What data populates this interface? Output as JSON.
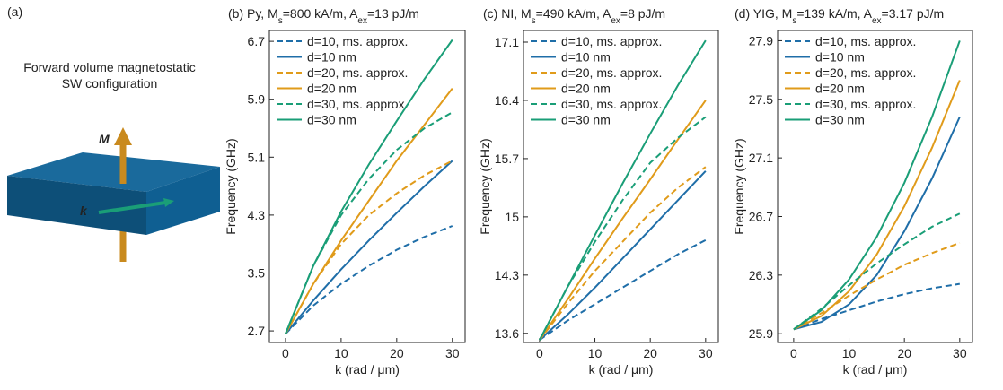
{
  "panel_a": {
    "label": "(a)",
    "title_lines": [
      "Forward volume magnetostatic",
      "SW configuration"
    ],
    "m_label": "M",
    "k_label": "k"
  },
  "chart_data": [
    {
      "type": "line",
      "title_parts": [
        "(b) Py, M",
        "s",
        "=800 kA/m, A",
        "ex",
        "=13 pJ/m"
      ],
      "x_label": "k (rad / μm)",
      "y_label": "Frequency (GHz)",
      "x": [
        0,
        5,
        10,
        15,
        20,
        25,
        30
      ],
      "xlim": [
        -2.9,
        32.3
      ],
      "xticks": [
        0,
        10,
        20,
        30
      ],
      "ylim": [
        2.54,
        6.85
      ],
      "yticks": [
        2.7,
        3.5,
        4.3,
        5.1,
        5.9,
        6.7
      ],
      "series": [
        {
          "name": "d=10, ms. approx.",
          "color": "#1f6ea8",
          "dash": true,
          "values": [
            2.66,
            3.05,
            3.35,
            3.6,
            3.82,
            4.0,
            4.15
          ]
        },
        {
          "name": "d=10 nm",
          "color": "#1f6ea8",
          "dash": false,
          "values": [
            2.66,
            3.12,
            3.55,
            3.95,
            4.33,
            4.7,
            5.05
          ]
        },
        {
          "name": "d=20, ms. approx.",
          "color": "#e09b1a",
          "dash": true,
          "values": [
            2.66,
            3.35,
            3.9,
            4.3,
            4.6,
            4.85,
            5.05
          ]
        },
        {
          "name": "d=20 nm",
          "color": "#e09b1a",
          "dash": false,
          "values": [
            2.66,
            3.35,
            3.95,
            4.5,
            5.05,
            5.55,
            6.05
          ]
        },
        {
          "name": "d=30, ms. approx.",
          "color": "#1a9e77",
          "dash": true,
          "values": [
            2.66,
            3.6,
            4.3,
            4.8,
            5.2,
            5.5,
            5.72
          ]
        },
        {
          "name": "d=30 nm",
          "color": "#1a9e77",
          "dash": false,
          "values": [
            2.66,
            3.6,
            4.35,
            5.0,
            5.6,
            6.18,
            6.72
          ]
        }
      ]
    },
    {
      "type": "line",
      "title_parts": [
        "(c) NI, M",
        "s",
        "=490 kA/m, A",
        "ex",
        "=8 pJ/m"
      ],
      "x_label": "k (rad / μm)",
      "y_label": "Frequency (GHz)",
      "x": [
        0,
        5,
        10,
        15,
        20,
        25,
        30
      ],
      "xlim": [
        -2.9,
        32.3
      ],
      "xticks": [
        0,
        10,
        20,
        30
      ],
      "ylim": [
        13.49,
        17.24
      ],
      "yticks": [
        13.6,
        14.3,
        15.0,
        15.7,
        16.4,
        17.1
      ],
      "series": [
        {
          "name": "d=10, ms. approx.",
          "color": "#1f6ea8",
          "dash": true,
          "values": [
            13.52,
            13.75,
            13.95,
            14.15,
            14.35,
            14.55,
            14.72
          ]
        },
        {
          "name": "d=10 nm",
          "color": "#1f6ea8",
          "dash": false,
          "values": [
            13.52,
            13.82,
            14.15,
            14.5,
            14.85,
            15.2,
            15.55
          ]
        },
        {
          "name": "d=20, ms. approx.",
          "color": "#e09b1a",
          "dash": true,
          "values": [
            13.52,
            13.95,
            14.35,
            14.7,
            15.05,
            15.35,
            15.6
          ]
        },
        {
          "name": "d=20 nm",
          "color": "#e09b1a",
          "dash": false,
          "values": [
            13.52,
            14.0,
            14.5,
            14.98,
            15.45,
            15.93,
            16.4
          ]
        },
        {
          "name": "d=30, ms. approx.",
          "color": "#1a9e77",
          "dash": true,
          "values": [
            13.52,
            14.15,
            14.7,
            15.2,
            15.65,
            15.95,
            16.2
          ]
        },
        {
          "name": "d=30 nm",
          "color": "#1a9e77",
          "dash": false,
          "values": [
            13.52,
            14.15,
            14.78,
            15.4,
            16.0,
            16.58,
            17.12
          ]
        }
      ]
    },
    {
      "type": "line",
      "title_parts": [
        "(d) YIG, M",
        "s",
        "=139 kA/m, A",
        "ex",
        "=3.17 pJ/m"
      ],
      "x_label": "k (rad / μm)",
      "y_label": "Frequency (GHz)",
      "x": [
        0,
        5,
        10,
        15,
        20,
        25,
        30
      ],
      "xlim": [
        -2.9,
        32.3
      ],
      "xticks": [
        0,
        10,
        20,
        30
      ],
      "ylim": [
        25.84,
        27.97
      ],
      "yticks": [
        25.9,
        26.3,
        26.7,
        27.1,
        27.5,
        27.9
      ],
      "series": [
        {
          "name": "d=10, ms. approx.",
          "color": "#1f6ea8",
          "dash": true,
          "values": [
            25.93,
            26.0,
            26.06,
            26.12,
            26.17,
            26.21,
            26.24
          ]
        },
        {
          "name": "d=10 nm",
          "color": "#1f6ea8",
          "dash": false,
          "values": [
            25.93,
            25.98,
            26.1,
            26.3,
            26.6,
            26.96,
            27.38
          ]
        },
        {
          "name": "d=20, ms. approx.",
          "color": "#e09b1a",
          "dash": true,
          "values": [
            25.93,
            26.04,
            26.16,
            26.27,
            26.37,
            26.45,
            26.52
          ]
        },
        {
          "name": "d=20 nm",
          "color": "#e09b1a",
          "dash": false,
          "values": [
            25.93,
            26.02,
            26.19,
            26.44,
            26.77,
            27.17,
            27.63
          ]
        },
        {
          "name": "d=30, ms. approx.",
          "color": "#1a9e77",
          "dash": true,
          "values": [
            25.93,
            26.07,
            26.23,
            26.38,
            26.51,
            26.63,
            26.72
          ]
        },
        {
          "name": "d=30 nm",
          "color": "#1a9e77",
          "dash": false,
          "values": [
            25.93,
            26.06,
            26.27,
            26.56,
            26.93,
            27.38,
            27.9
          ]
        }
      ]
    }
  ]
}
